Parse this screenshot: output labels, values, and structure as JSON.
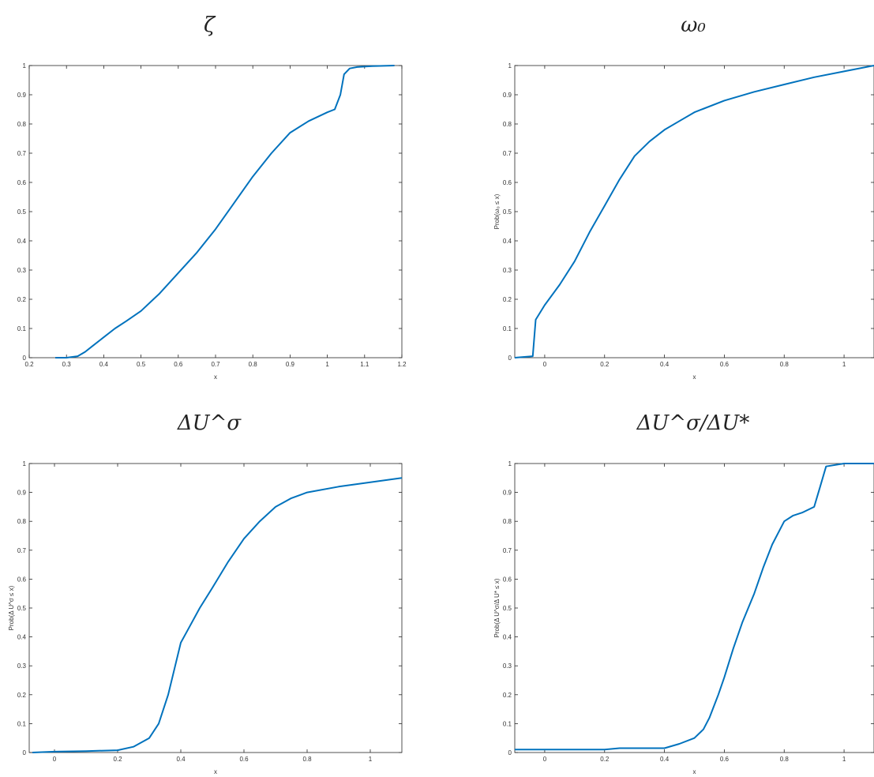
{
  "chart_data": [
    {
      "type": "line",
      "title": "ζ",
      "xlabel": "x",
      "ylabel": "",
      "xlim": [
        0.2,
        1.2
      ],
      "ylim": [
        0,
        1
      ],
      "xticks": [
        "0.2",
        "0.3",
        "0.4",
        "0.5",
        "0.6",
        "0.7",
        "0.8",
        "0.9",
        "1",
        "1.1",
        "1.2"
      ],
      "xtick_values": [
        0.2,
        0.3,
        0.4,
        0.5,
        0.6,
        0.7,
        0.8,
        0.9,
        1.0,
        1.1,
        1.2
      ],
      "yticks": [
        "0",
        "0.1",
        "0.2",
        "0.3",
        "0.4",
        "0.5",
        "0.6",
        "0.7",
        "0.8",
        "0.9",
        "1"
      ],
      "grid": false,
      "color": "#0072bd",
      "x": [
        0.27,
        0.3,
        0.33,
        0.35,
        0.37,
        0.4,
        0.43,
        0.46,
        0.5,
        0.55,
        0.6,
        0.65,
        0.7,
        0.75,
        0.8,
        0.85,
        0.9,
        0.95,
        1.0,
        1.02,
        1.035,
        1.045,
        1.06,
        1.08,
        1.12,
        1.18
      ],
      "y": [
        0.0,
        0.0,
        0.005,
        0.02,
        0.04,
        0.07,
        0.1,
        0.125,
        0.16,
        0.22,
        0.29,
        0.36,
        0.44,
        0.53,
        0.62,
        0.7,
        0.77,
        0.81,
        0.84,
        0.85,
        0.9,
        0.97,
        0.99,
        0.995,
        0.998,
        1.0
      ]
    },
    {
      "type": "line",
      "title": "ω₀",
      "xlabel": "x",
      "ylabel": "Prob(ω₀ ≤ x)",
      "xlim": [
        -0.1,
        1.1
      ],
      "ylim": [
        0,
        1
      ],
      "xticks": [
        "0",
        "0.2",
        "0.4",
        "0.6",
        "0.8",
        "1"
      ],
      "xtick_values": [
        0,
        0.2,
        0.4,
        0.6,
        0.8,
        1.0
      ],
      "yticks": [
        "0",
        "0.1",
        "0.2",
        "0.3",
        "0.4",
        "0.5",
        "0.6",
        "0.7",
        "0.8",
        "0.9",
        "1"
      ],
      "grid": false,
      "color": "#0072bd",
      "x": [
        -0.1,
        -0.04,
        -0.03,
        0.0,
        0.05,
        0.1,
        0.15,
        0.2,
        0.25,
        0.3,
        0.35,
        0.4,
        0.45,
        0.5,
        0.6,
        0.7,
        0.8,
        0.9,
        1.0,
        1.1
      ],
      "y": [
        0.0,
        0.005,
        0.13,
        0.18,
        0.25,
        0.33,
        0.43,
        0.52,
        0.61,
        0.69,
        0.74,
        0.78,
        0.81,
        0.84,
        0.88,
        0.91,
        0.935,
        0.96,
        0.98,
        1.0
      ]
    },
    {
      "type": "line",
      "title": "ΔU^σ",
      "xlabel": "x",
      "ylabel": "Prob(Δ U^σ ≤ x)",
      "xlim": [
        -0.08,
        1.1
      ],
      "ylim": [
        0,
        1
      ],
      "xticks": [
        "0",
        "0.2",
        "0.4",
        "0.6",
        "0.8",
        "1"
      ],
      "xtick_values": [
        0,
        0.2,
        0.4,
        0.6,
        0.8,
        1.0
      ],
      "yticks": [
        "0",
        "0.1",
        "0.2",
        "0.3",
        "0.4",
        "0.5",
        "0.6",
        "0.7",
        "0.8",
        "0.9",
        "1"
      ],
      "grid": false,
      "color": "#0072bd",
      "x": [
        -0.07,
        0.0,
        0.1,
        0.2,
        0.25,
        0.3,
        0.33,
        0.36,
        0.4,
        0.42,
        0.46,
        0.5,
        0.55,
        0.6,
        0.65,
        0.7,
        0.75,
        0.8,
        0.9,
        1.0,
        1.1
      ],
      "y": [
        0.0,
        0.003,
        0.005,
        0.008,
        0.02,
        0.05,
        0.1,
        0.2,
        0.38,
        0.42,
        0.5,
        0.57,
        0.66,
        0.74,
        0.8,
        0.85,
        0.88,
        0.9,
        0.92,
        0.935,
        0.95
      ]
    },
    {
      "type": "line",
      "title": "ΔU^σ/ΔU*",
      "xlabel": "x",
      "ylabel": "Prob(Δ U^σ/Δ U* ≤ x)",
      "xlim": [
        -0.1,
        1.1
      ],
      "ylim": [
        0,
        1
      ],
      "xticks": [
        "0",
        "0.2",
        "0.4",
        "0.6",
        "0.8",
        "1"
      ],
      "xtick_values": [
        0,
        0.2,
        0.4,
        0.6,
        0.8,
        1.0
      ],
      "yticks": [
        "0",
        "0.1",
        "0.2",
        "0.3",
        "0.4",
        "0.5",
        "0.6",
        "0.7",
        "0.8",
        "0.9",
        "1"
      ],
      "grid": false,
      "color": "#0072bd",
      "x": [
        -0.1,
        0.2,
        0.25,
        0.4,
        0.45,
        0.5,
        0.53,
        0.55,
        0.58,
        0.6,
        0.63,
        0.66,
        0.7,
        0.73,
        0.76,
        0.8,
        0.83,
        0.86,
        0.9,
        0.92,
        0.94,
        1.0,
        1.1
      ],
      "y": [
        0.01,
        0.01,
        0.015,
        0.015,
        0.03,
        0.05,
        0.08,
        0.12,
        0.2,
        0.26,
        0.36,
        0.45,
        0.55,
        0.64,
        0.72,
        0.8,
        0.82,
        0.83,
        0.85,
        0.92,
        0.99,
        1.0,
        1.0
      ]
    }
  ]
}
